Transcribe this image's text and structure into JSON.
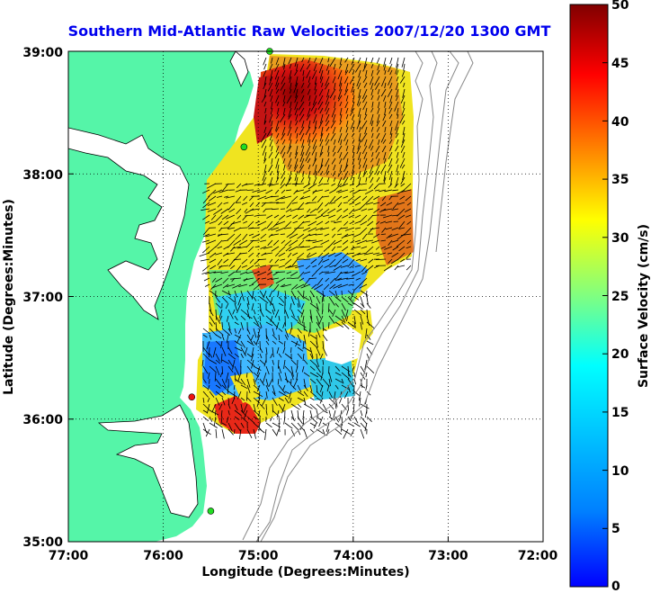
{
  "title": "Southern Mid-Atlantic Raw Velocities 2007/12/20 1300 GMT",
  "xlabel": "Longitude (Degrees:Minutes)",
  "ylabel": "Latitude (Degrees:Minutes)",
  "x_ticks": [
    "77:00",
    "76:00",
    "75:00",
    "74:00",
    "73:00",
    "72:00"
  ],
  "y_ticks": [
    "39:00",
    "38:00",
    "37:00",
    "36:00",
    "35:00"
  ],
  "colorbar": {
    "label": "Surface Velocity (cm/s)",
    "ticks": [
      "50",
      "45",
      "40",
      "35",
      "30",
      "25",
      "20",
      "15",
      "10",
      "5",
      "0"
    ],
    "min": 0,
    "max": 50
  },
  "colors": {
    "land": "#55f5a8",
    "title": "#0000ee",
    "station_green": "#22dd22",
    "station_red": "#ee1111"
  },
  "chart_data": {
    "type": "heatmap",
    "xlim": [
      -77,
      -72
    ],
    "ylim": [
      35,
      39
    ],
    "grid": true,
    "stations": [
      {
        "lon": -74.88,
        "lat": 39.0,
        "color": "green"
      },
      {
        "lon": -75.15,
        "lat": 38.22,
        "color": "green"
      },
      {
        "lon": -75.7,
        "lat": 36.18,
        "color": "red"
      },
      {
        "lon": -75.5,
        "lat": 35.25,
        "color": "green"
      }
    ]
  }
}
